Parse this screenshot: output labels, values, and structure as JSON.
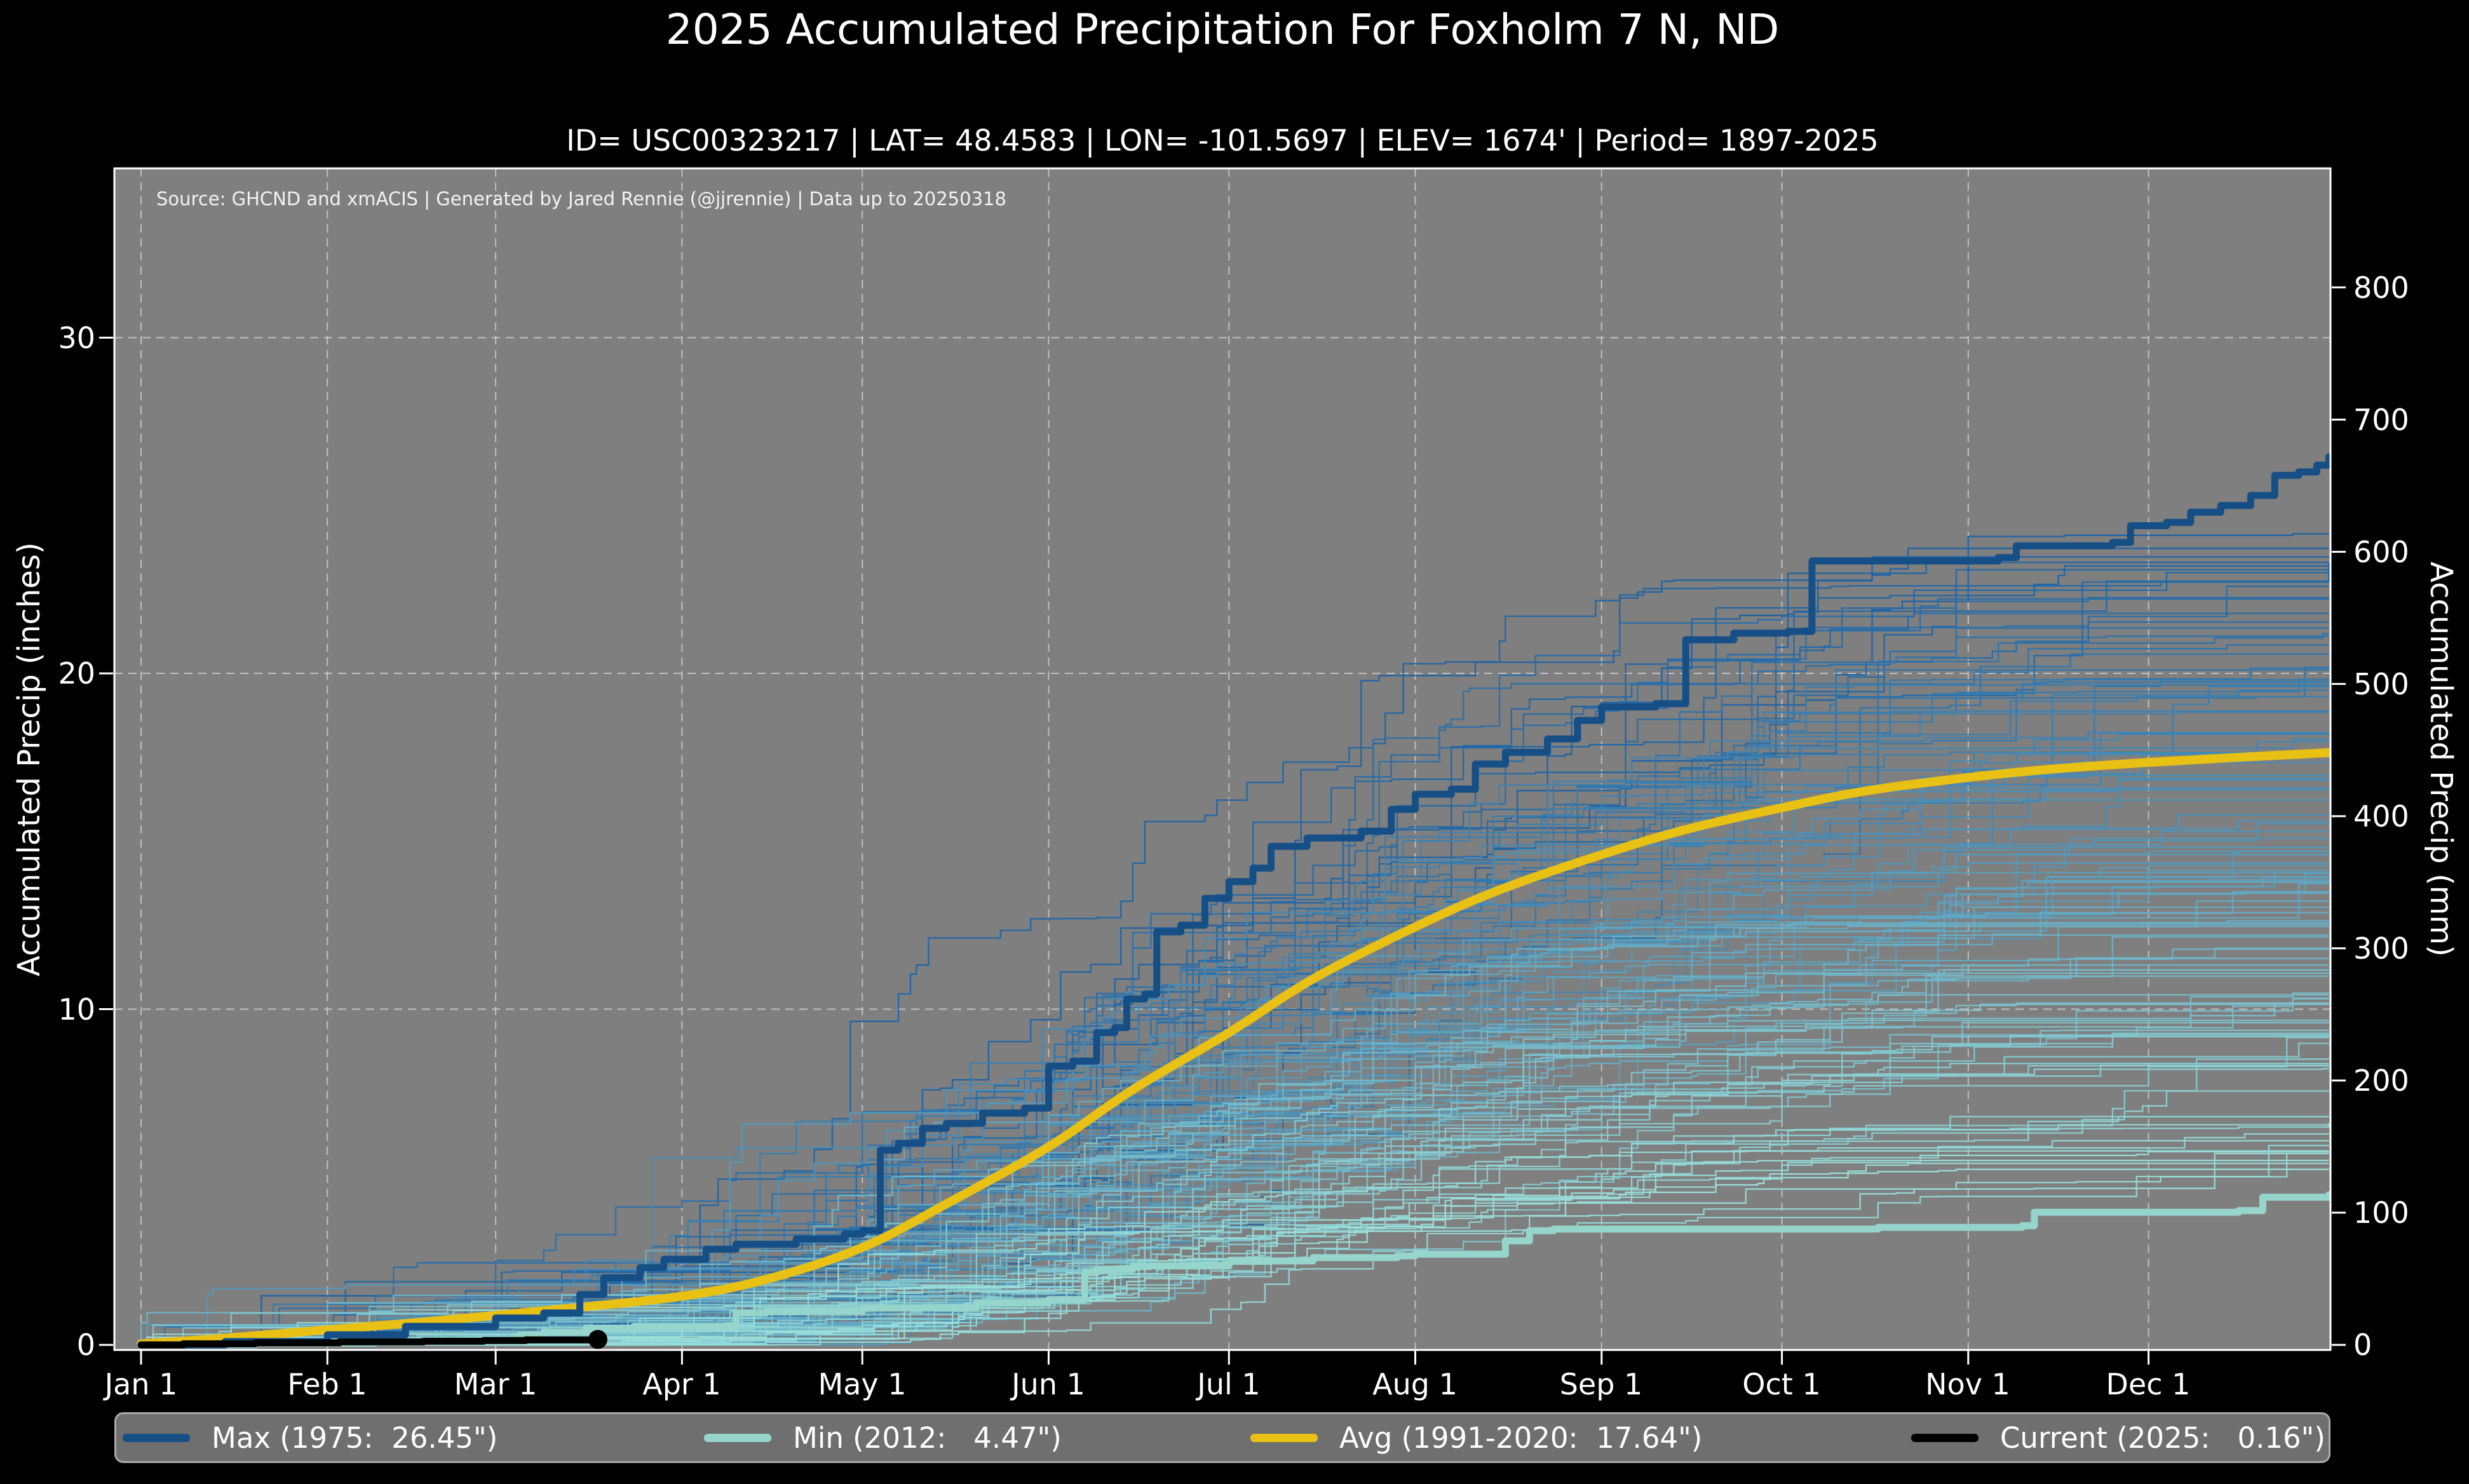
{
  "title": "2025 Accumulated Precipitation For Foxholm 7 N, ND",
  "subtitle": "ID= USC00323217 | LAT= 48.4583 | LON= -101.5697 | ELEV= 1674' | Period= 1897-2025",
  "source_note": "Source: GHCND and xmACIS | Generated by Jared Rennie (@jjrennie) | Data up to 20250318",
  "axes": {
    "left": {
      "label": "Accumulated Precip (inches)",
      "ticks": [
        {
          "label": "0",
          "inches": 0
        },
        {
          "label": "10",
          "inches": 10
        },
        {
          "label": "20",
          "inches": 20
        },
        {
          "label": "30",
          "inches": 30
        }
      ]
    },
    "right": {
      "label": "Accumulated Precip (mm)",
      "ticks": [
        {
          "label": "0",
          "mm": 0
        },
        {
          "label": "100",
          "mm": 100
        },
        {
          "label": "200",
          "mm": 200
        },
        {
          "label": "300",
          "mm": 300
        },
        {
          "label": "400",
          "mm": 400
        },
        {
          "label": "500",
          "mm": 500
        },
        {
          "label": "600",
          "mm": 600
        },
        {
          "label": "700",
          "mm": 700
        },
        {
          "label": "800",
          "mm": 800
        }
      ]
    },
    "x": {
      "ticks": [
        {
          "label": "Jan 1",
          "day": 1
        },
        {
          "label": "Feb 1",
          "day": 32
        },
        {
          "label": "Mar 1",
          "day": 60
        },
        {
          "label": "Apr 1",
          "day": 91
        },
        {
          "label": "May 1",
          "day": 121
        },
        {
          "label": "Jun 1",
          "day": 152
        },
        {
          "label": "Jul 1",
          "day": 182
        },
        {
          "label": "Aug 1",
          "day": 213
        },
        {
          "label": "Sep 1",
          "day": 244
        },
        {
          "label": "Oct 1",
          "day": 274
        },
        {
          "label": "Nov 1",
          "day": 305
        },
        {
          "label": "Dec 1",
          "day": 335
        }
      ]
    }
  },
  "legend": {
    "items": [
      {
        "label": "Max (1975:  26.45\")",
        "color": "#164e86"
      },
      {
        "label": "Min (2012:   4.47\")",
        "color": "#96d5cb"
      },
      {
        "label": "Avg (1991-2020:  17.64\")",
        "color": "#e9c115"
      },
      {
        "label": "Current (2025:   0.16\")",
        "color": "#000000"
      }
    ]
  },
  "colors": {
    "figure_bg": "#000000",
    "plot_bg": "#7f7f7f",
    "grid": "#d6d6d6",
    "spine": "#ffffff",
    "text": "#ffffff",
    "legend_bg": "#6f6f6f",
    "legend_border": "#ababab"
  },
  "chart_data": {
    "type": "line",
    "title": "2025 Accumulated Precipitation For Foxholm 7 N, ND",
    "xlabel": "",
    "ylabel_left": "Accumulated Precip (inches)",
    "ylabel_right": "Accumulated Precip (mm)",
    "x_unit": "day_of_year",
    "xlim": [
      1,
      365
    ],
    "ylim_inches": [
      0,
      35
    ],
    "grid": "dashed, vertical at month starts, horizontal at 10/20/30 inches",
    "legend_position": "bottom bar",
    "series": [
      {
        "name": "Max (1975)",
        "total_inches": 26.45,
        "color": "#164e86",
        "width": 11,
        "style": "step",
        "points": [
          [
            1,
            0
          ],
          [
            15,
            0.1
          ],
          [
            32,
            0.3
          ],
          [
            45,
            0.55
          ],
          [
            60,
            0.8
          ],
          [
            68,
            0.95
          ],
          [
            74,
            1.5
          ],
          [
            78,
            2.0
          ],
          [
            84,
            2.3
          ],
          [
            88,
            2.55
          ],
          [
            95,
            2.85
          ],
          [
            100,
            3.0
          ],
          [
            110,
            3.15
          ],
          [
            118,
            3.3
          ],
          [
            121,
            3.4
          ],
          [
            124,
            5.8
          ],
          [
            127,
            6.0
          ],
          [
            131,
            6.45
          ],
          [
            135,
            6.6
          ],
          [
            141,
            6.9
          ],
          [
            148,
            7.05
          ],
          [
            152,
            8.3
          ],
          [
            156,
            8.45
          ],
          [
            160,
            9.3
          ],
          [
            163,
            9.45
          ],
          [
            165,
            10.3
          ],
          [
            168,
            10.45
          ],
          [
            170,
            12.3
          ],
          [
            174,
            12.5
          ],
          [
            178,
            13.3
          ],
          [
            182,
            13.8
          ],
          [
            186,
            14.2
          ],
          [
            189,
            14.85
          ],
          [
            195,
            15.1
          ],
          [
            204,
            15.3
          ],
          [
            209,
            15.95
          ],
          [
            213,
            16.4
          ],
          [
            219,
            16.55
          ],
          [
            223,
            17.3
          ],
          [
            228,
            17.65
          ],
          [
            235,
            18.05
          ],
          [
            240,
            18.6
          ],
          [
            244,
            19.0
          ],
          [
            253,
            19.1
          ],
          [
            258,
            21.0
          ],
          [
            266,
            21.2
          ],
          [
            275,
            21.25
          ],
          [
            279,
            23.35
          ],
          [
            310,
            23.45
          ],
          [
            313,
            23.8
          ],
          [
            329,
            23.9
          ],
          [
            332,
            24.4
          ],
          [
            338,
            24.5
          ],
          [
            342,
            24.8
          ],
          [
            347,
            25.0
          ],
          [
            352,
            25.3
          ],
          [
            356,
            25.9
          ],
          [
            360,
            26.0
          ],
          [
            363,
            26.2
          ],
          [
            365,
            26.45
          ]
        ]
      },
      {
        "name": "Min (2012)",
        "total_inches": 4.47,
        "color": "#96d5cb",
        "width": 11,
        "style": "step",
        "points": [
          [
            1,
            0
          ],
          [
            20,
            0.05
          ],
          [
            40,
            0.08
          ],
          [
            58,
            0.12
          ],
          [
            64,
            0.3
          ],
          [
            68,
            0.38
          ],
          [
            75,
            0.5
          ],
          [
            83,
            0.55
          ],
          [
            100,
            0.95
          ],
          [
            105,
            1.0
          ],
          [
            121,
            1.1
          ],
          [
            140,
            1.25
          ],
          [
            152,
            1.35
          ],
          [
            158,
            2.15
          ],
          [
            160,
            2.25
          ],
          [
            166,
            2.35
          ],
          [
            182,
            2.5
          ],
          [
            196,
            2.6
          ],
          [
            210,
            2.65
          ],
          [
            213,
            2.7
          ],
          [
            228,
            3.1
          ],
          [
            232,
            3.4
          ],
          [
            236,
            3.45
          ],
          [
            290,
            3.5
          ],
          [
            314,
            3.55
          ],
          [
            316,
            3.95
          ],
          [
            350,
            4.0
          ],
          [
            354,
            4.4
          ],
          [
            365,
            4.47
          ]
        ]
      },
      {
        "name": "Avg (1991-2020)",
        "total_inches": 17.64,
        "color": "#e9c115",
        "width": 14,
        "style": "smooth",
        "points": [
          [
            1,
            0.03
          ],
          [
            15,
            0.2
          ],
          [
            32,
            0.45
          ],
          [
            46,
            0.65
          ],
          [
            60,
            0.88
          ],
          [
            74,
            1.12
          ],
          [
            91,
            1.45
          ],
          [
            105,
            1.95
          ],
          [
            121,
            2.9
          ],
          [
            135,
            4.2
          ],
          [
            152,
            5.9
          ],
          [
            166,
            7.6
          ],
          [
            182,
            9.3
          ],
          [
            196,
            10.9
          ],
          [
            213,
            12.45
          ],
          [
            227,
            13.55
          ],
          [
            244,
            14.6
          ],
          [
            258,
            15.35
          ],
          [
            274,
            16.0
          ],
          [
            288,
            16.5
          ],
          [
            305,
            16.9
          ],
          [
            319,
            17.15
          ],
          [
            335,
            17.35
          ],
          [
            350,
            17.5
          ],
          [
            365,
            17.64
          ]
        ]
      },
      {
        "name": "Current (2025)",
        "total_inches": 0.16,
        "color": "#000000",
        "width": 11,
        "style": "step",
        "points": [
          [
            1,
            0
          ],
          [
            8,
            0.03
          ],
          [
            20,
            0.06
          ],
          [
            34,
            0.09
          ],
          [
            48,
            0.11
          ],
          [
            58,
            0.13
          ],
          [
            65,
            0.15
          ],
          [
            77,
            0.16
          ]
        ],
        "marker": {
          "day": 77,
          "value": 0.16,
          "radius": 15
        }
      }
    ],
    "background_years": {
      "description": "thin accumulation curves for each year 1897-2024, colored dark blue (wet years) to pale cyan (dry years)",
      "count": 124,
      "seed": 11,
      "total_range_inches": [
        5.2,
        24.2
      ],
      "color_high_total": "#1a61a5",
      "color_low_total": "#9ce0da",
      "line_width": 2.3
    }
  }
}
